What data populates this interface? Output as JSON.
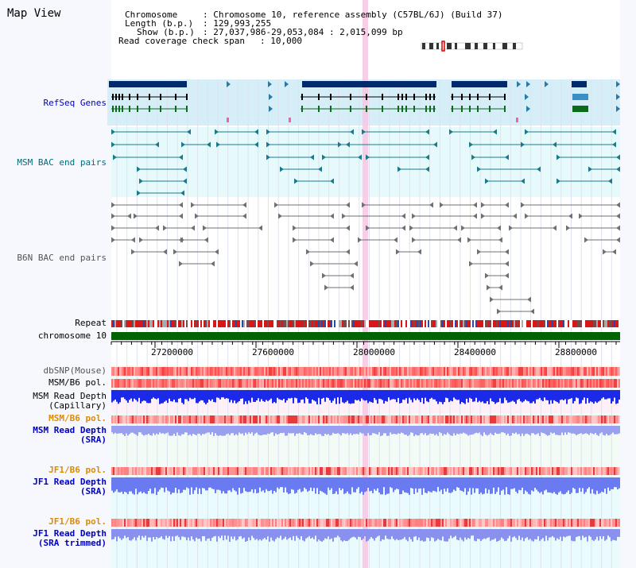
{
  "header": {
    "title": "Map View",
    "chromosome_label": "Chromosome",
    "chromosome_value": ": Chromosome 10, reference assembly (C57BL/6J) (Build 37)",
    "length_label": "Length (b.p.)",
    "length_value": ": 129,993,255",
    "show_label": "Show (b.p.)",
    "show_value": ": 27,037,986-29,053,084 : 2,015,099 bp",
    "span_label": "Read coverage check span",
    "span_value": ": 10,000"
  },
  "tracks": {
    "refseq": "RefSeq Genes",
    "msm_bac": "MSM BAC end pairs",
    "b6n_bac": "B6N BAC end pairs",
    "repeat": "Repeat",
    "chromosome": "chromosome 10",
    "dbsnp": "dbSNP(Mouse)",
    "msm_b6_pol_1": "MSM/B6 pol.",
    "msm_read_depth_cap_1": "MSM Read Depth",
    "msm_read_depth_cap_2": "(Capillary)",
    "msm_b6_pol_2": "MSM/B6 pol.",
    "msm_read_depth_sra_1": "MSM Read Depth",
    "msm_read_depth_sra_2": "(SRA)",
    "jf1_b6_pol_1": "JF1/B6 pol.",
    "jf1_read_depth_sra_1": "JF1 Read Depth",
    "jf1_read_depth_sra_2": "(SRA)",
    "jf1_b6_pol_2": "JF1/B6 pol.",
    "jf1_read_depth_trim_1": "JF1 Read Depth",
    "jf1_read_depth_trim_2": "(SRA trimmed)"
  },
  "axis": {
    "ticks": [
      "27200000",
      "27600000",
      "28000000",
      "28400000",
      "28800000"
    ]
  },
  "colors": {
    "label_default": "#000000",
    "label_blue": "#0000c0",
    "label_teal": "#006b7b",
    "label_orange": "#e08a00",
    "gene_dark": "#002a6b",
    "bac_teal": "#1a7a8a",
    "bac_gray": "#707070",
    "chrom_green": "#006400",
    "highlight_pink": "#f7c7e4"
  }
}
